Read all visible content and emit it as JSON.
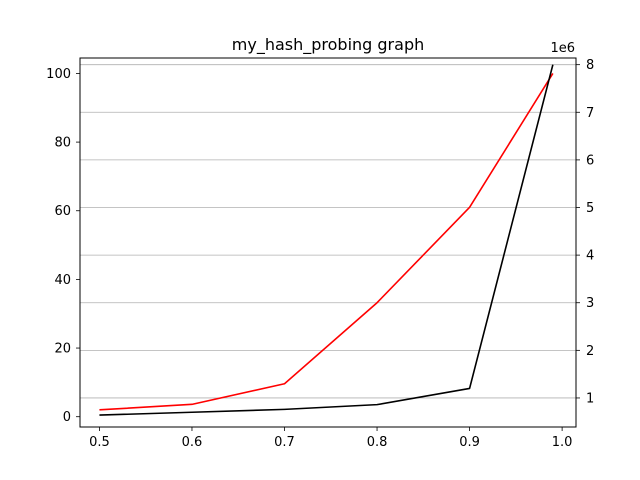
{
  "chart_data": {
    "type": "line",
    "title": "my_hash_probing graph",
    "xlabel": "",
    "ylabel": "",
    "xlim": [
      0.479,
      1.015
    ],
    "ylim_left": [
      -3.0,
      104.5
    ],
    "ylim_right": [
      390000,
      8140000
    ],
    "x_ticks": [
      0.5,
      0.6,
      0.7,
      0.8,
      0.9,
      1.0
    ],
    "x_tick_labels": [
      "0.5",
      "0.6",
      "0.7",
      "0.8",
      "0.9",
      "1.0"
    ],
    "y_left_ticks": [
      0,
      20,
      40,
      60,
      80,
      100
    ],
    "y_left_tick_labels": [
      "0",
      "20",
      "40",
      "60",
      "80",
      "100"
    ],
    "y_right_ticks": [
      1000000,
      2000000,
      3000000,
      4000000,
      5000000,
      6000000,
      7000000,
      8000000
    ],
    "y_right_tick_labels": [
      "1",
      "2",
      "3",
      "4",
      "5",
      "6",
      "7",
      "8"
    ],
    "y_right_offset_label": "1e6",
    "grid": "horizontal lines on right axis",
    "legend": "none",
    "series": [
      {
        "axis": "left",
        "color": "#ff0000",
        "x": [
          0.5,
          0.6,
          0.7,
          0.8,
          0.9,
          0.99
        ],
        "y": [
          2.0,
          3.6,
          9.6,
          33.2,
          61.0,
          100.0
        ]
      },
      {
        "axis": "right",
        "color": "#000000",
        "x": [
          0.5,
          0.6,
          0.7,
          0.8,
          0.9,
          0.99
        ],
        "y": [
          640000,
          700000,
          760000,
          860000,
          1200000,
          8000000
        ]
      }
    ]
  }
}
